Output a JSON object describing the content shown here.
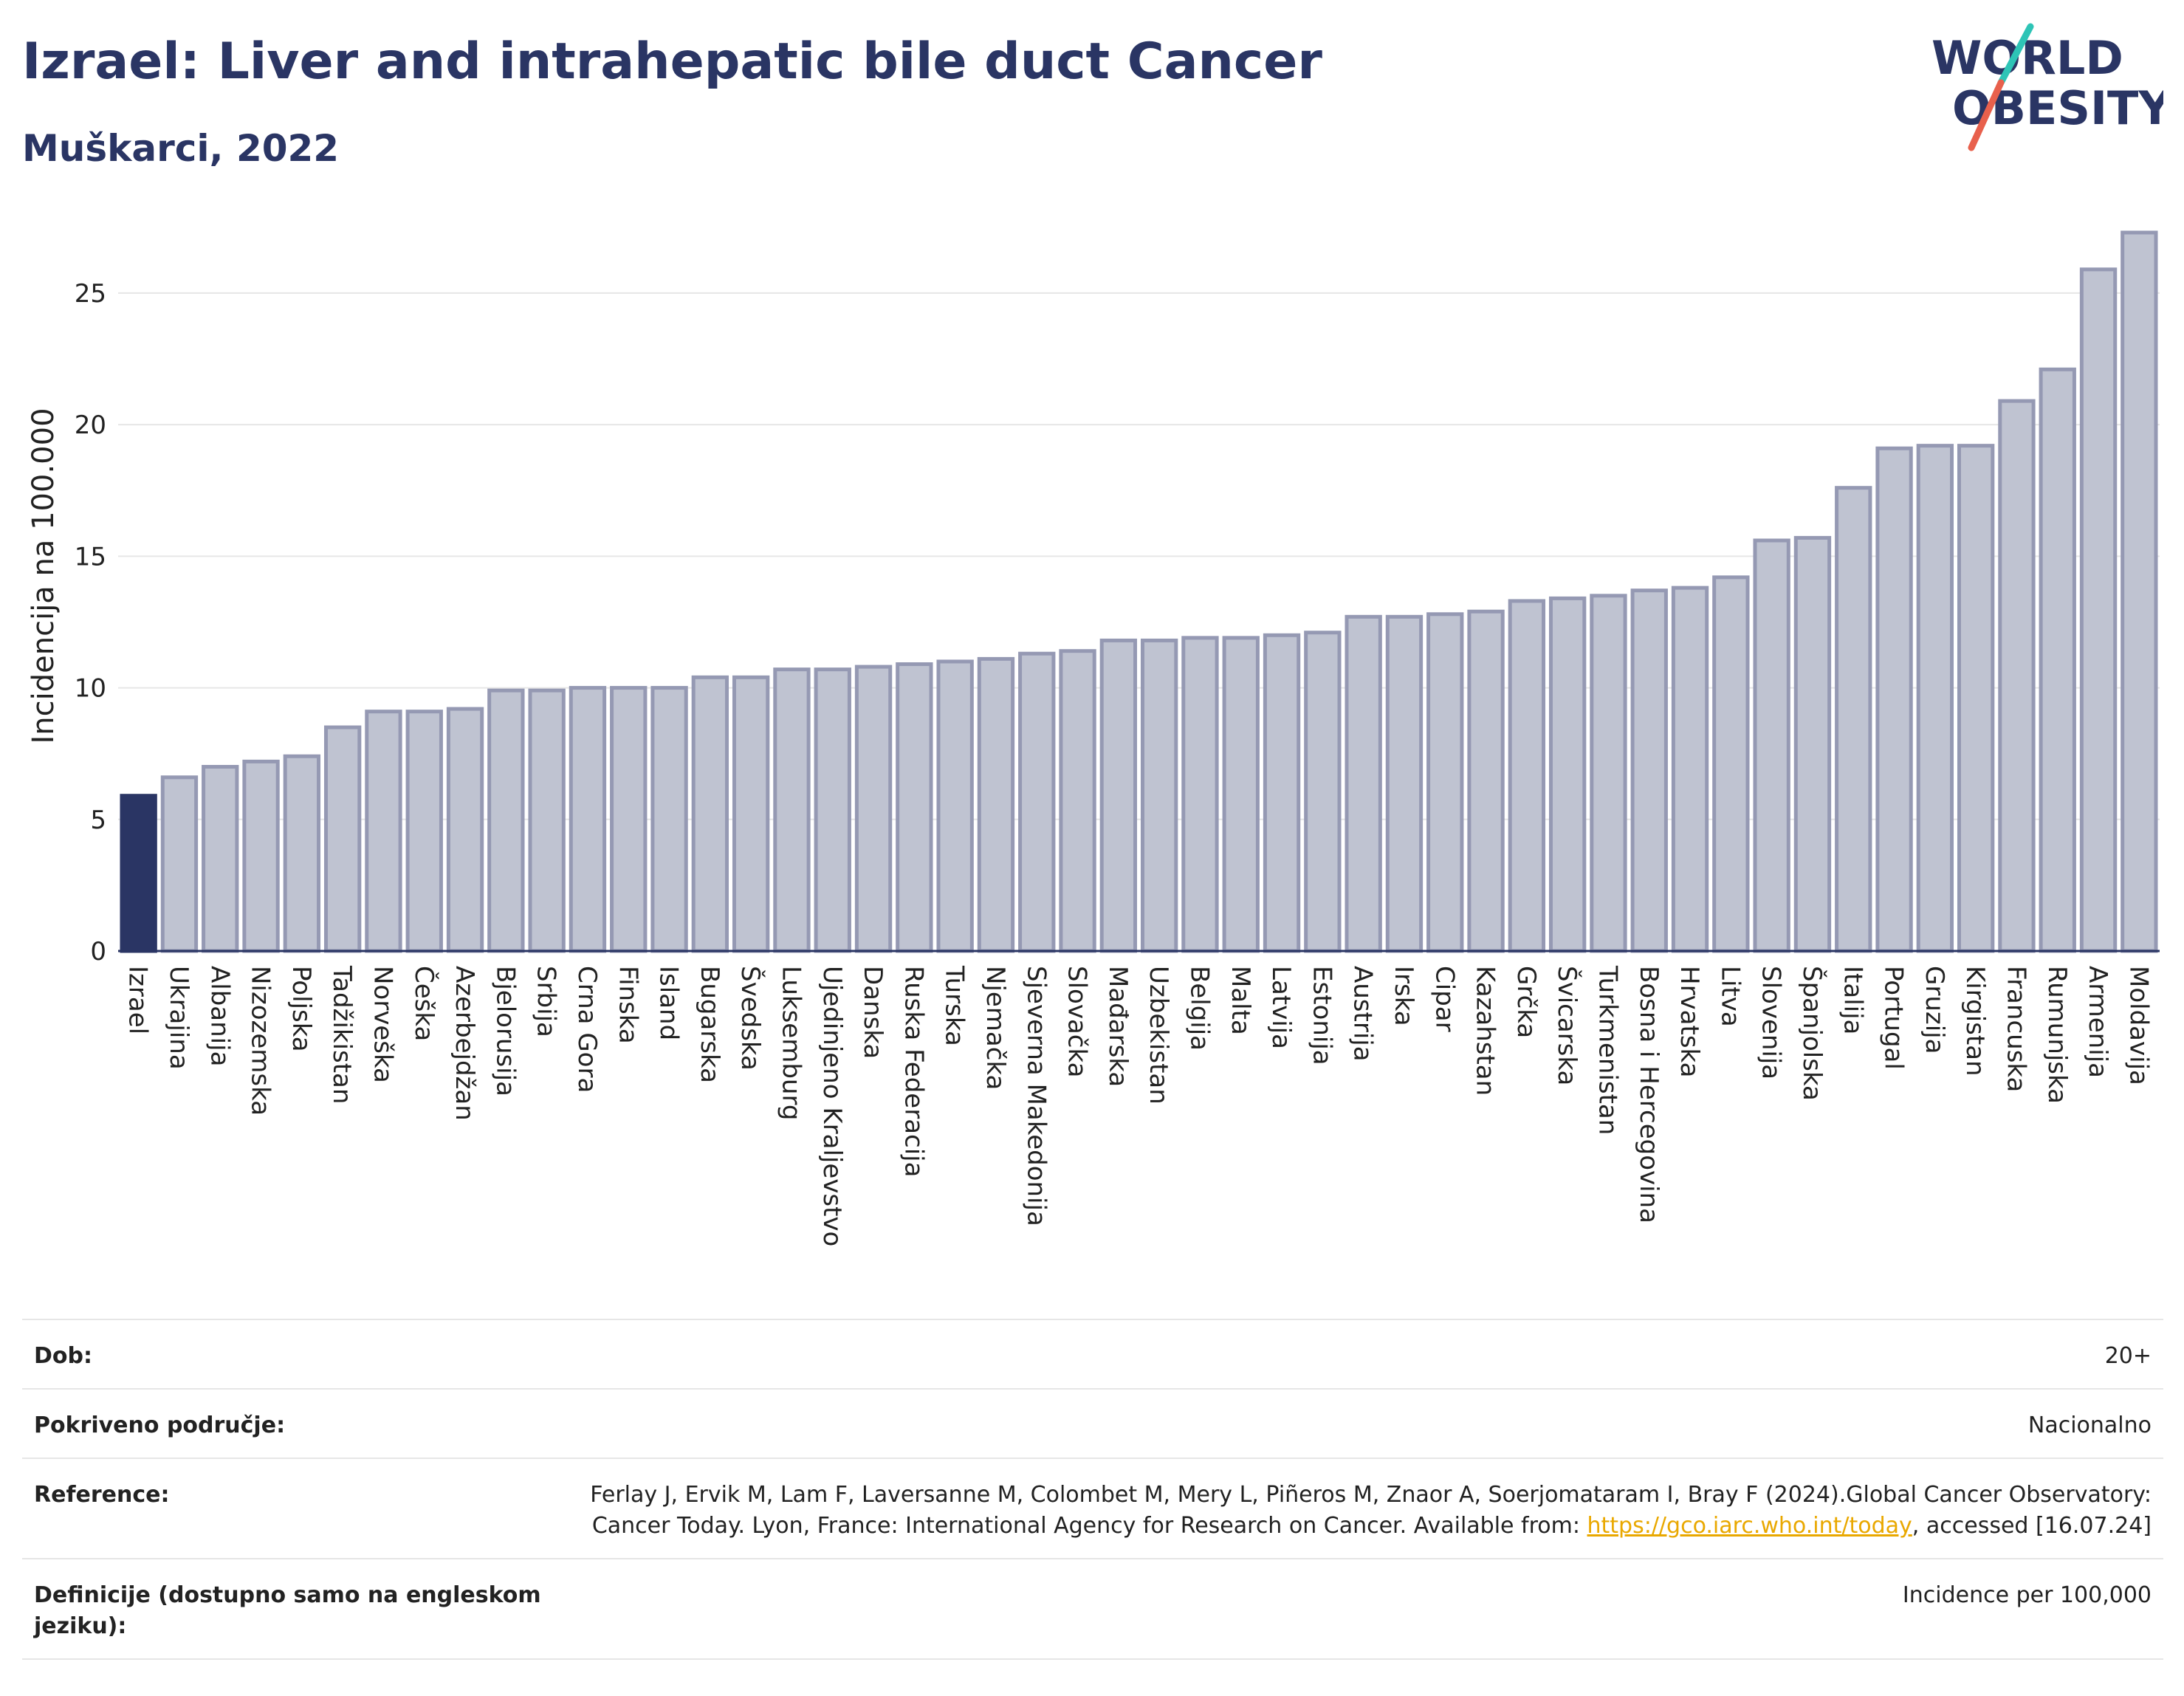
{
  "header": {
    "title": "Izrael: Liver and intrahepatic bile duct Cancer",
    "subtitle": "Muškarci, 2022"
  },
  "logo": {
    "line1": "WORLD",
    "line2": "OBESITY"
  },
  "colors": {
    "highlight": "#2a3564",
    "bar_fill": "#bfc3d1",
    "bar_stroke": "#9599b3",
    "grid": "#e6e6e6",
    "logo_slash_top": "#2ec4b6",
    "logo_slash_bottom": "#e8604c"
  },
  "chart_data": {
    "type": "bar",
    "ylabel": "Incidencija na 100.000",
    "xlabel": "",
    "ylim": [
      0,
      28
    ],
    "yticks": [
      0,
      5,
      10,
      15,
      20,
      25
    ],
    "grid": true,
    "highlight": "Izrael",
    "categories": [
      "Izrael",
      "Ukrajina",
      "Albanija",
      "Nizozemska",
      "Poljska",
      "Tadžikistan",
      "Norveška",
      "Češka",
      "Azerbejdžan",
      "Bjelorusija",
      "Srbija",
      "Crna Gora",
      "Finska",
      "Island",
      "Bugarska",
      "Švedska",
      "Luksemburg",
      "Ujedinjeno Kraljevstvo",
      "Danska",
      "Ruska Federacija",
      "Turska",
      "Njemačka",
      "Sjeverna Makedonija",
      "Slovačka",
      "Mađarska",
      "Uzbekistan",
      "Belgija",
      "Malta",
      "Latvija",
      "Estonija",
      "Austrija",
      "Irska",
      "Cipar",
      "Kazahstan",
      "Grčka",
      "Švicarska",
      "Turkmenistan",
      "Bosna i Hercegovina",
      "Hrvatska",
      "Litva",
      "Slovenija",
      "Španjolska",
      "Italija",
      "Portugal",
      "Gruzija",
      "Kirgistan",
      "Francuska",
      "Rumunjska",
      "Armenija",
      "Moldavija"
    ],
    "values": [
      5.9,
      6.6,
      7.0,
      7.2,
      7.4,
      8.5,
      9.1,
      9.1,
      9.2,
      9.9,
      9.9,
      10.0,
      10.0,
      10.0,
      10.4,
      10.4,
      10.7,
      10.7,
      10.8,
      10.9,
      11.0,
      11.1,
      11.3,
      11.4,
      11.8,
      11.8,
      11.9,
      11.9,
      12.0,
      12.1,
      12.7,
      12.7,
      12.8,
      12.9,
      13.3,
      13.4,
      13.5,
      13.7,
      13.8,
      14.2,
      15.6,
      15.7,
      17.6,
      19.1,
      19.2,
      19.2,
      20.9,
      22.1,
      25.9,
      27.3
    ]
  },
  "meta": {
    "rows": [
      {
        "key": "Dob:",
        "value": "20+"
      },
      {
        "key": "Pokriveno područje:",
        "value": "Nacionalno"
      },
      {
        "key": "Reference:",
        "value_pre": "Ferlay J, Ervik M, Lam F, Laversanne M, Colombet M, Mery L, Piñeros M, Znaor A, Soerjomataram I, Bray F (2024).Global Cancer Observatory: Cancer Today. Lyon, France: International Agency for Research on Cancer. Available from: ",
        "link": "https://gco.iarc.who.int/today",
        "value_post": ", accessed [16.07.24]"
      },
      {
        "key": "Definicije (dostupno samo na engleskom jeziku):",
        "value": "Incidence per 100,000"
      }
    ]
  }
}
